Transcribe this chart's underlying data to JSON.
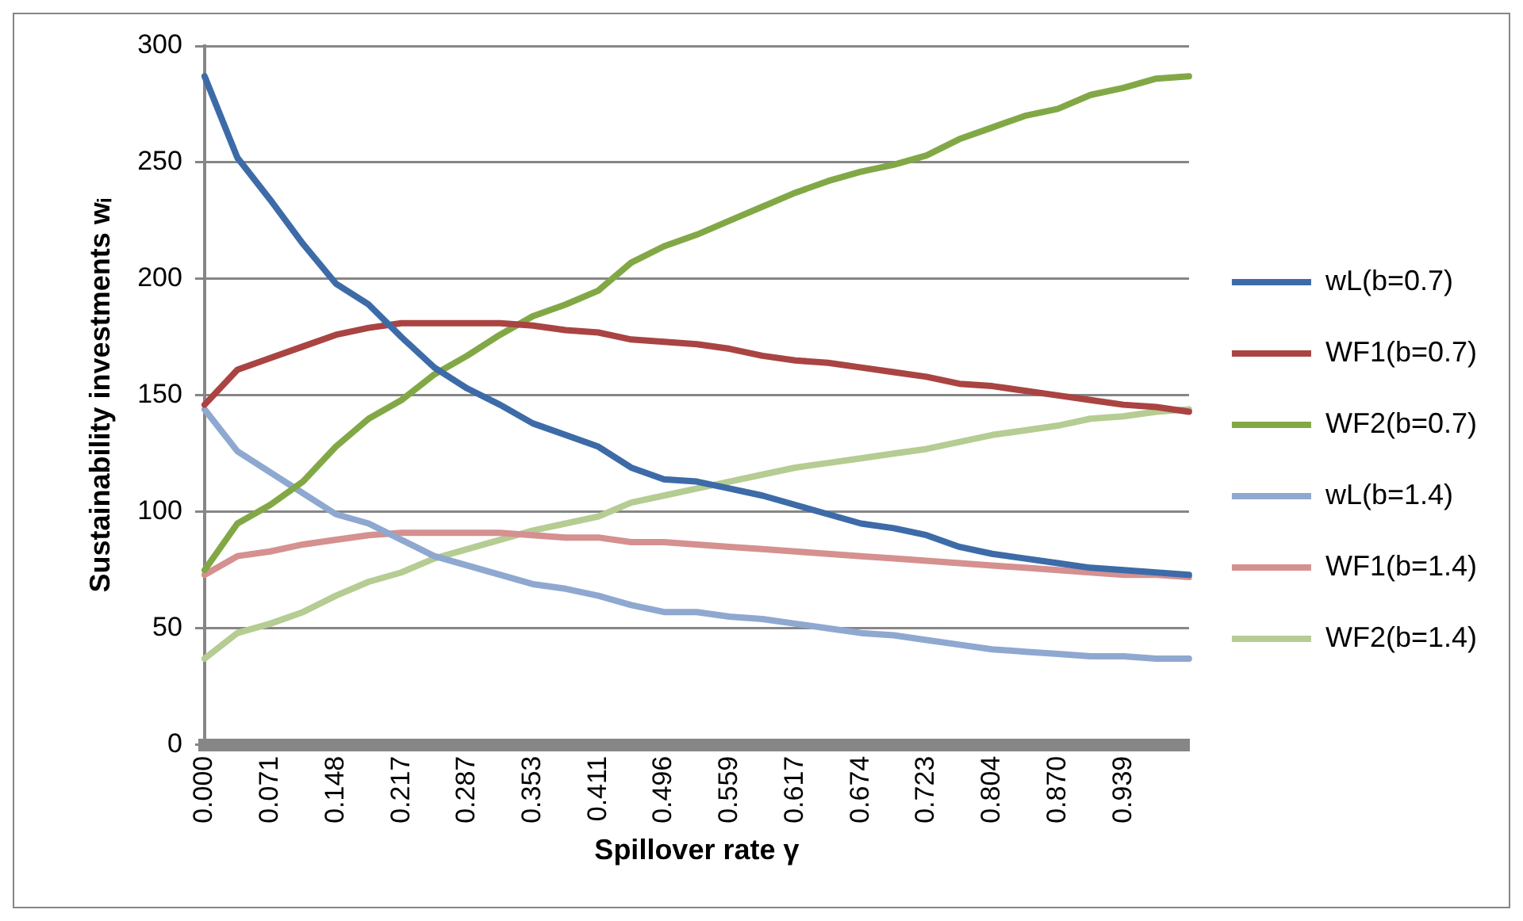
{
  "chart_data": {
    "type": "line",
    "xlabel": "Spillover rate γ",
    "ylabel": "Sustainability investments wᵢ",
    "categories": [
      "0.000",
      null,
      "0.071",
      null,
      "0.148",
      null,
      "0.217",
      null,
      "0.287",
      null,
      "0.353",
      null,
      "0.411",
      null,
      "0.496",
      null,
      "0.559",
      null,
      "0.617",
      null,
      "0.674",
      null,
      "0.723",
      null,
      "0.804",
      null,
      "0.870",
      null,
      "0.939",
      null,
      null
    ],
    "series": [
      {
        "name": "wL(b=0.7)",
        "color": "#3d6ba8",
        "values": [
          287,
          252,
          234,
          215,
          198,
          189,
          175,
          162,
          153,
          146,
          138,
          133,
          128,
          119,
          114,
          113,
          110,
          107,
          103,
          99,
          95,
          93,
          90,
          85,
          82,
          80,
          78,
          76,
          75,
          74,
          73
        ]
      },
      {
        "name": "WF1(b=0.7)",
        "color": "#a94442",
        "values": [
          146,
          161,
          166,
          171,
          176,
          179,
          181,
          181,
          181,
          181,
          180,
          178,
          177,
          174,
          173,
          172,
          170,
          167,
          165,
          164,
          162,
          160,
          158,
          155,
          154,
          152,
          150,
          148,
          146,
          145,
          143
        ]
      },
      {
        "name": "WF2(b=0.7)",
        "color": "#82a846",
        "values": [
          75,
          95,
          103,
          113,
          128,
          140,
          148,
          159,
          167,
          176,
          184,
          189,
          195,
          207,
          214,
          219,
          225,
          231,
          237,
          242,
          246,
          249,
          253,
          260,
          265,
          270,
          273,
          279,
          282,
          286,
          287
        ]
      },
      {
        "name": "wL(b=1.4)",
        "color": "#8fa8d0",
        "values": [
          144,
          126,
          117,
          108,
          99,
          95,
          88,
          81,
          77,
          73,
          69,
          67,
          64,
          60,
          57,
          57,
          55,
          54,
          52,
          50,
          48,
          47,
          45,
          43,
          41,
          40,
          39,
          38,
          38,
          37,
          37
        ]
      },
      {
        "name": "WF1(b=1.4)",
        "color": "#d59090",
        "values": [
          73,
          81,
          83,
          86,
          88,
          90,
          91,
          91,
          91,
          91,
          90,
          89,
          89,
          87,
          87,
          86,
          85,
          84,
          83,
          82,
          81,
          80,
          79,
          78,
          77,
          76,
          75,
          74,
          73,
          73,
          72
        ]
      },
      {
        "name": "WF2(b=1.4)",
        "color": "#b5cc92",
        "values": [
          37,
          48,
          52,
          57,
          64,
          70,
          74,
          80,
          84,
          88,
          92,
          95,
          98,
          104,
          107,
          110,
          113,
          116,
          119,
          121,
          123,
          125,
          127,
          130,
          133,
          135,
          137,
          140,
          141,
          143,
          144
        ]
      }
    ],
    "ylim": [
      0,
      300
    ],
    "yticks": [
      0,
      50,
      100,
      150,
      200,
      250,
      300
    ],
    "grid": "y",
    "legend": "right",
    "marker": "none"
  }
}
